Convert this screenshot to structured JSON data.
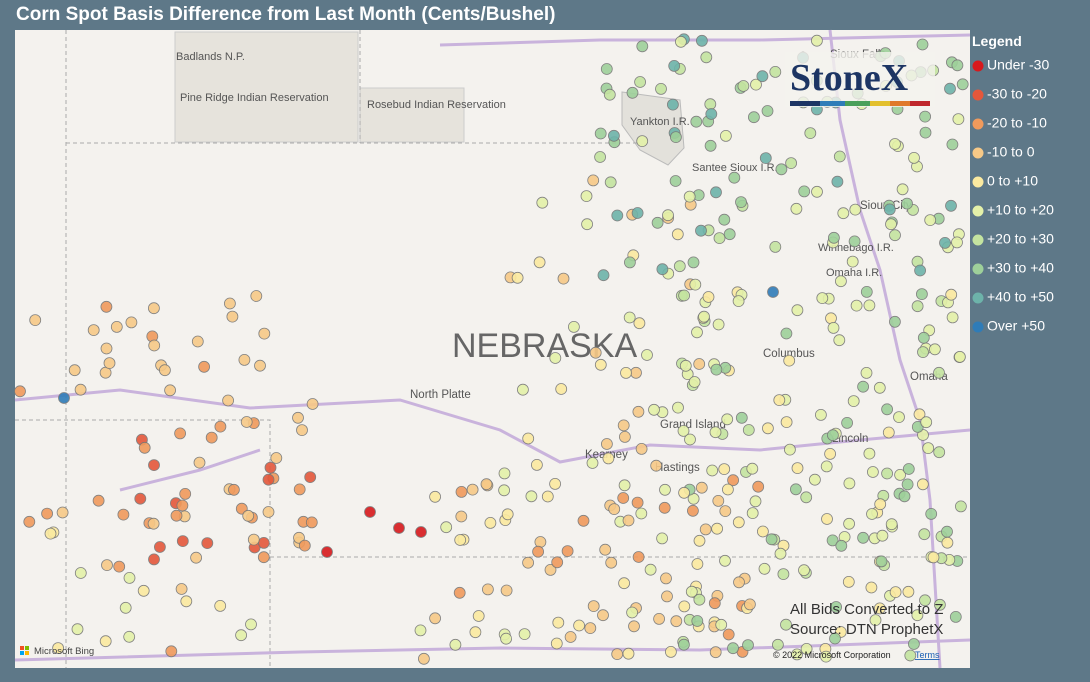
{
  "header": {
    "title": "Corn Spot Basis Difference from Last Month (Cents/Bushel)"
  },
  "legend": {
    "title": "Legend",
    "items": [
      {
        "label": "Under -30",
        "color": "#d7191c"
      },
      {
        "label": "-30 to -20",
        "color": "#e4573b"
      },
      {
        "label": "-20 to -10",
        "color": "#f09a5c"
      },
      {
        "label": "-10 to 0",
        "color": "#f7c987"
      },
      {
        "label": "0 to +10",
        "color": "#fbeaa0"
      },
      {
        "label": "+10 to +20",
        "color": "#e4f1a9"
      },
      {
        "label": "+20 to +30",
        "color": "#c4e4a0"
      },
      {
        "label": "+30 to +40",
        "color": "#9ed09a"
      },
      {
        "label": "+40 to +50",
        "color": "#6db3aa"
      },
      {
        "label": "Over +50",
        "color": "#2f7cb8"
      }
    ]
  },
  "map": {
    "region_label": "NEBRASKA",
    "labels": [
      "Badlands N.P.",
      "Pine Ridge Indian Reservation",
      "Rosebud Indian Reservation",
      "Yankton I.R.",
      "Santee Sioux I.R.",
      "Sioux Falls",
      "Sioux City",
      "Winnebago I.R.",
      "Omaha I.R.",
      "Columbus",
      "North Platte",
      "Grand Island",
      "Kearney",
      "Hastings",
      "Lincoln",
      "Omaha"
    ]
  },
  "logo": "StoneX",
  "notes": [
    "All Bids Converted to Z",
    "Source: DTN ProphetX"
  ],
  "attribution": {
    "provider": "Microsoft Bing",
    "copyright": "© 2022 Microsoft Corporation",
    "terms": "Terms"
  }
}
